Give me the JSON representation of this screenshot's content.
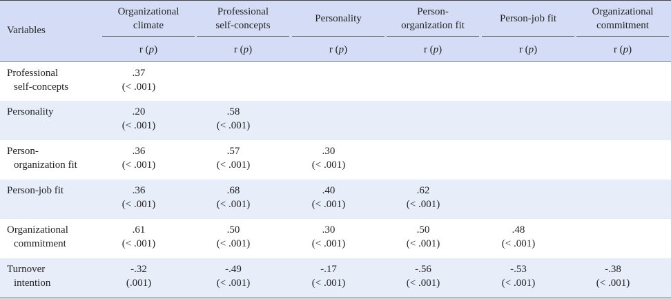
{
  "table": {
    "header": {
      "variables": "Variables",
      "columns": [
        [
          "Organizational",
          "climate"
        ],
        [
          "Professional",
          "self-concepts"
        ],
        [
          "Personality"
        ],
        [
          "Person-",
          "organization fit"
        ],
        [
          "Person-job fit"
        ],
        [
          "Organizational",
          "commitment"
        ]
      ],
      "sub_headers": [
        [
          "r (",
          "p",
          ")"
        ],
        [
          "r (",
          "p",
          ")"
        ],
        [
          "r (",
          "p",
          ")"
        ],
        [
          "r (",
          "p",
          ")"
        ],
        [
          "r (",
          "p",
          ")"
        ],
        [
          "r (",
          "p",
          ")"
        ]
      ]
    },
    "rows": [
      {
        "label": [
          "Professional",
          "self-concepts"
        ],
        "cells": [
          {
            "r": ".37",
            "p": "(< .001)"
          }
        ]
      },
      {
        "label": [
          "Personality"
        ],
        "cells": [
          {
            "r": ".20",
            "p": "(< .001)"
          },
          {
            "r": ".58",
            "p": "(< .001)"
          }
        ]
      },
      {
        "label": [
          "Person-",
          "organization fit"
        ],
        "cells": [
          {
            "r": ".36",
            "p": "(< .001)"
          },
          {
            "r": ".57",
            "p": "(< .001)"
          },
          {
            "r": ".30",
            "p": "(< .001)"
          }
        ]
      },
      {
        "label": [
          "Person-job fit"
        ],
        "cells": [
          {
            "r": ".36",
            "p": "(< .001)"
          },
          {
            "r": ".68",
            "p": "(< .001)"
          },
          {
            "r": ".40",
            "p": "(< .001)"
          },
          {
            "r": ".62",
            "p": "(< .001)"
          }
        ]
      },
      {
        "label": [
          "Organizational",
          "commitment"
        ],
        "cells": [
          {
            "r": ".61",
            "p": "(< .001)"
          },
          {
            "r": ".50",
            "p": "(< .001)"
          },
          {
            "r": ".30",
            "p": "(< .001)"
          },
          {
            "r": ".50",
            "p": "(< .001)"
          },
          {
            "r": ".48",
            "p": "(< .001)"
          }
        ]
      },
      {
        "label": [
          "Turnover",
          "intention"
        ],
        "cells": [
          {
            "r": "-.32",
            "p": "(.001)"
          },
          {
            "r": "-.49",
            "p": "(< .001)"
          },
          {
            "r": "-.17",
            "p": "(< .001)"
          },
          {
            "r": "-.56",
            "p": "(< .001)"
          },
          {
            "r": "-.53",
            "p": "(< .001)"
          },
          {
            "r": "-.38",
            "p": "(< .001)"
          }
        ]
      }
    ]
  }
}
